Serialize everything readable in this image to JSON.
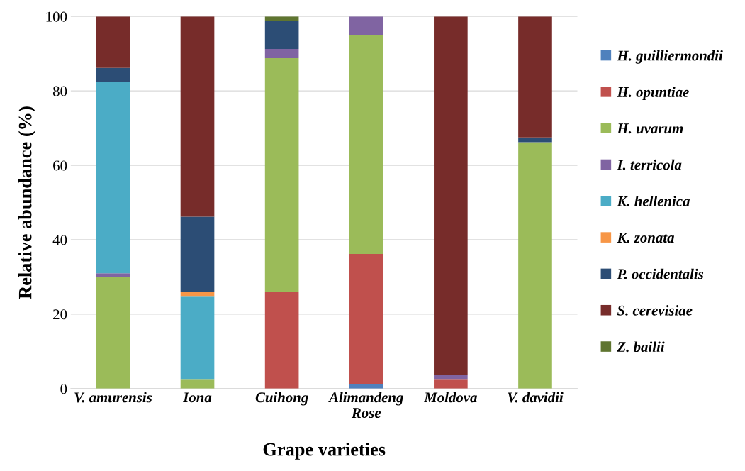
{
  "chart_data": {
    "type": "bar",
    "stacked": true,
    "xlabel": "Grape varieties",
    "ylabel": "Relative abundance (%)",
    "categories": [
      "V. amurensis",
      "Iona",
      "Cuihong",
      "Alimandeng\nRose",
      "Moldova",
      "V. davidii"
    ],
    "series": [
      {
        "name": "H. guilliermondii",
        "color": "#4f81bd",
        "values": [
          0,
          0,
          0,
          1.2,
          0,
          0
        ]
      },
      {
        "name": "H. opuntiae",
        "color": "#c0504d",
        "values": [
          0,
          0,
          26.1,
          35.0,
          2.4,
          0
        ]
      },
      {
        "name": "H. uvarum",
        "color": "#9bbb59",
        "values": [
          30.0,
          2.4,
          62.7,
          58.9,
          0,
          66.2
        ]
      },
      {
        "name": "I. terricola",
        "color": "#8064a2",
        "values": [
          1.0,
          0,
          2.5,
          4.9,
          1.2,
          0
        ]
      },
      {
        "name": "K. hellenica",
        "color": "#4bacc6",
        "values": [
          51.5,
          22.5,
          0,
          0,
          0,
          0
        ]
      },
      {
        "name": "K. zonata",
        "color": "#f79646",
        "values": [
          0,
          1.2,
          0,
          0,
          0,
          0
        ]
      },
      {
        "name": "P. occidentalis",
        "color": "#2c4d75",
        "values": [
          3.7,
          20.1,
          7.5,
          0,
          0,
          1.3
        ]
      },
      {
        "name": "S. cerevisiae",
        "color": "#772c2a",
        "values": [
          13.8,
          53.8,
          0,
          0,
          96.4,
          32.5
        ]
      },
      {
        "name": "Z. bailii",
        "color": "#5f7530",
        "values": [
          0,
          0,
          1.2,
          0,
          0,
          0
        ]
      }
    ],
    "ylim": [
      0,
      100
    ],
    "yticks": [
      0,
      20,
      40,
      60,
      80,
      100
    ],
    "grid": "y",
    "legend": "right"
  }
}
